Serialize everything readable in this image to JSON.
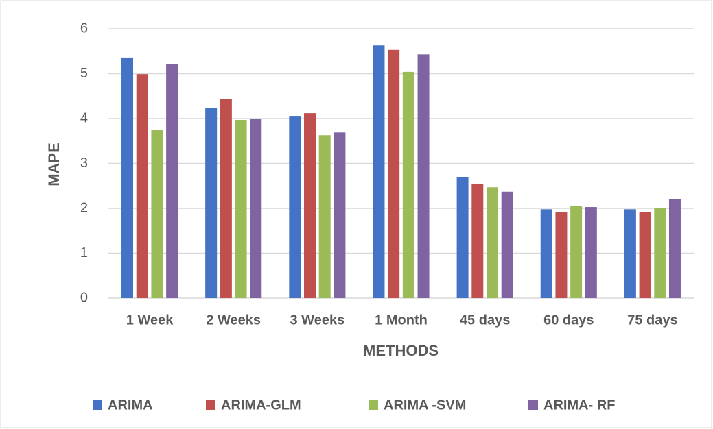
{
  "chart_data": {
    "type": "bar",
    "categories": [
      "1 Week",
      "2 Weeks",
      "3 Weeks",
      "1 Month",
      "45 days",
      "60 days",
      "75 days"
    ],
    "series": [
      {
        "name": "ARIMA",
        "color": "#4472c4",
        "values": [
          5.36,
          4.23,
          4.06,
          5.63,
          2.69,
          1.98,
          1.98
        ]
      },
      {
        "name": "ARIMA-GLM",
        "color": "#c0504d",
        "values": [
          4.99,
          4.43,
          4.12,
          5.53,
          2.55,
          1.91,
          1.91
        ]
      },
      {
        "name": "ARIMA -SVM",
        "color": "#9bbb59",
        "values": [
          3.74,
          3.97,
          3.63,
          5.04,
          2.47,
          2.05,
          2.0
        ]
      },
      {
        "name": "ARIMA- RF",
        "color": "#8064a2",
        "values": [
          5.22,
          4.0,
          3.69,
          5.43,
          2.37,
          2.03,
          2.21
        ]
      }
    ],
    "xlabel": "METHODS",
    "ylabel": "MAPE",
    "ylim": [
      0,
      6
    ],
    "yticks": [
      0,
      1,
      2,
      3,
      4,
      5,
      6
    ],
    "grid": true,
    "legend": "bottom"
  }
}
